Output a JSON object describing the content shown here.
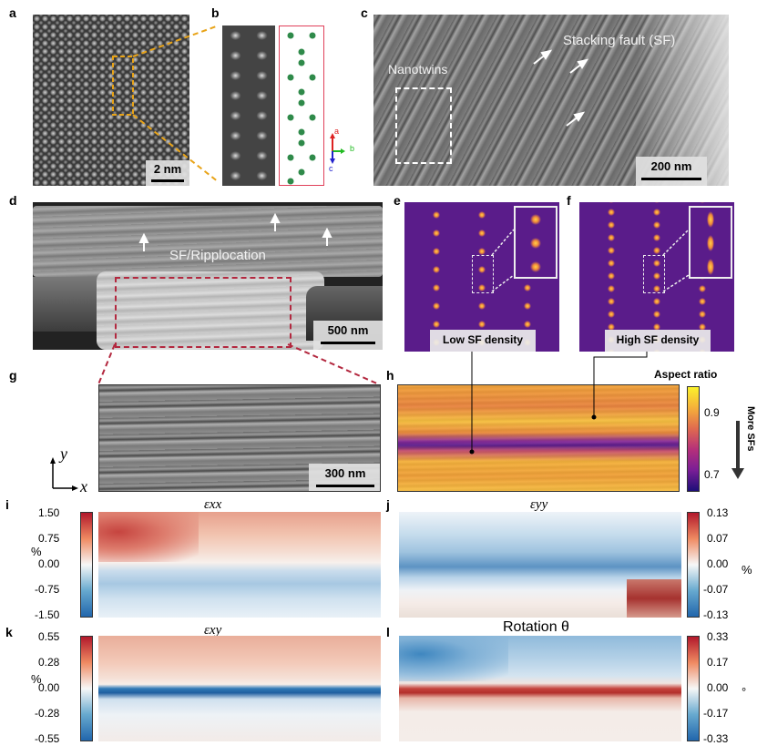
{
  "panels": {
    "a": {
      "label": "a",
      "scale": "2 nm"
    },
    "b": {
      "label": "b",
      "axes": {
        "a": "a",
        "b": "b",
        "c": "c"
      }
    },
    "c": {
      "label": "c",
      "scale": "200 nm",
      "nanotwins": "Nanotwins",
      "sf": "Stacking fault (SF)"
    },
    "d": {
      "label": "d",
      "scale": "500 nm",
      "text": "SF/Ripplocation"
    },
    "e": {
      "label": "e",
      "caption": "Low SF density"
    },
    "f": {
      "label": "f",
      "caption": "High SF density"
    },
    "g": {
      "label": "g",
      "scale": "300 nm",
      "axis_y": "y",
      "axis_x": "x"
    },
    "h": {
      "label": "h",
      "colorbar_title": "Aspect ratio",
      "ticks": [
        "0.9",
        "0.7"
      ],
      "side": "More SFs"
    },
    "i": {
      "label": "i",
      "title": "εxx",
      "ticks": [
        "1.50",
        "0.75",
        "0.00",
        "-0.75",
        "-1.50"
      ],
      "unit": "%"
    },
    "j": {
      "label": "j",
      "title": "εyy",
      "ticks": [
        "0.13",
        "0.07",
        "0.00",
        "-0.07",
        "-0.13"
      ],
      "unit": "%"
    },
    "k": {
      "label": "k",
      "title": "εxy",
      "ticks": [
        "0.55",
        "0.28",
        "0.00",
        "-0.28",
        "-0.55"
      ],
      "unit": "%"
    },
    "l": {
      "label": "l",
      "title": "Rotation θ",
      "ticks": [
        "0.33",
        "0.17",
        "0.00",
        "-0.17",
        "-0.33"
      ],
      "unit": "°"
    }
  },
  "colors": {
    "dash_orange": "#e8a317",
    "dash_red": "#b3283f",
    "accent_magenta": "#8b1d8b"
  }
}
